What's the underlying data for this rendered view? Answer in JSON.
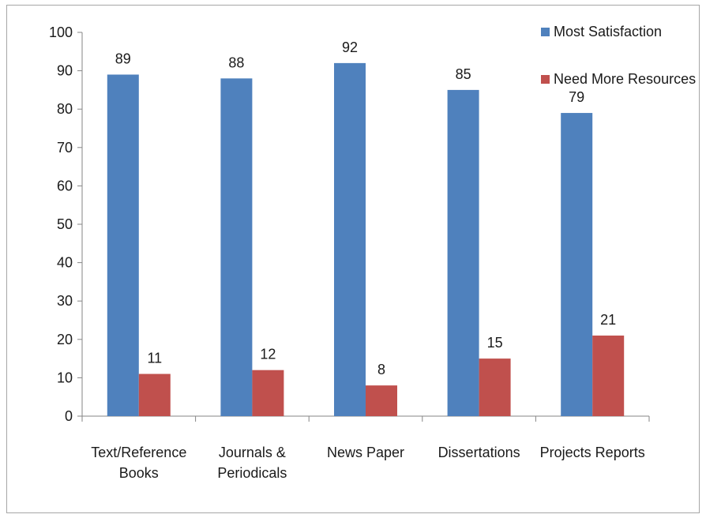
{
  "chart_data": {
    "type": "bar",
    "title": "",
    "xlabel": "",
    "ylabel": "",
    "ylim": [
      0,
      100
    ],
    "yticks": [
      0,
      10,
      20,
      30,
      40,
      50,
      60,
      70,
      80,
      90,
      100
    ],
    "categories": [
      [
        "Text/Reference",
        "Books"
      ],
      [
        "Journals &",
        "Periodicals"
      ],
      [
        "News Paper"
      ],
      [
        "Dissertations"
      ],
      [
        "Projects Reports"
      ]
    ],
    "series": [
      {
        "name": "Most Satisfaction",
        "color": "#4f81bd",
        "values": [
          89,
          88,
          92,
          85,
          79
        ]
      },
      {
        "name": "Need More Resources",
        "color": "#c0504d",
        "values": [
          11,
          12,
          8,
          15,
          21
        ]
      }
    ],
    "legend": "top-right",
    "grid": false,
    "data_labels": true
  }
}
